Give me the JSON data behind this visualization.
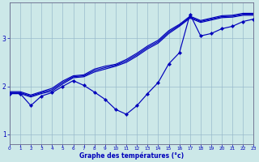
{
  "xlabel": "Graphe des températures (°c)",
  "bg_color": "#cce8e8",
  "line_color": "#0000bb",
  "grid_color": "#99bbcc",
  "xlim": [
    0,
    23
  ],
  "ylim": [
    0.8,
    3.75
  ],
  "yticks": [
    1,
    2,
    3
  ],
  "xticks": [
    0,
    1,
    2,
    3,
    4,
    5,
    6,
    7,
    8,
    9,
    10,
    11,
    12,
    13,
    14,
    15,
    16,
    17,
    18,
    19,
    20,
    21,
    22,
    23
  ],
  "line1": {
    "x": [
      0,
      1,
      2,
      3,
      4,
      5,
      6,
      7,
      8,
      9,
      10,
      11,
      12,
      13,
      14,
      15,
      16,
      17,
      18,
      19,
      20,
      21,
      22,
      23
    ],
    "y": [
      1.85,
      1.85,
      1.78,
      1.85,
      1.9,
      2.05,
      2.18,
      2.2,
      2.3,
      2.36,
      2.42,
      2.5,
      2.63,
      2.78,
      2.9,
      3.1,
      3.25,
      3.42,
      3.33,
      3.38,
      3.43,
      3.44,
      3.48,
      3.48
    ]
  },
  "line2": {
    "x": [
      0,
      1,
      2,
      3,
      4,
      5,
      6,
      7,
      8,
      9,
      10,
      11,
      12,
      13,
      14,
      15,
      16,
      17,
      18,
      19,
      20,
      21,
      22,
      23
    ],
    "y": [
      1.87,
      1.87,
      1.8,
      1.87,
      1.93,
      2.08,
      2.2,
      2.22,
      2.33,
      2.39,
      2.44,
      2.53,
      2.66,
      2.81,
      2.93,
      3.13,
      3.27,
      3.44,
      3.35,
      3.4,
      3.45,
      3.46,
      3.5,
      3.5
    ]
  },
  "line3": {
    "x": [
      0,
      1,
      2,
      3,
      4,
      5,
      6,
      7,
      8,
      9,
      10,
      11,
      12,
      13,
      14,
      15,
      16,
      17,
      18,
      19,
      20,
      21,
      22,
      23
    ],
    "y": [
      1.89,
      1.89,
      1.82,
      1.89,
      1.96,
      2.11,
      2.22,
      2.24,
      2.36,
      2.42,
      2.46,
      2.56,
      2.69,
      2.84,
      2.96,
      3.16,
      3.29,
      3.46,
      3.37,
      3.42,
      3.47,
      3.48,
      3.52,
      3.52
    ]
  },
  "line4": {
    "x": [
      0,
      1,
      2,
      3,
      4,
      5,
      6,
      7,
      8,
      9,
      10,
      11,
      12,
      13,
      14,
      15,
      16,
      17,
      18,
      19,
      20,
      21,
      22,
      23
    ],
    "y": [
      1.85,
      1.85,
      1.6,
      1.8,
      1.87,
      2.0,
      2.12,
      2.02,
      1.88,
      1.73,
      1.52,
      1.42,
      1.6,
      1.85,
      2.08,
      2.47,
      2.7,
      3.5,
      3.05,
      3.1,
      3.2,
      3.25,
      3.35,
      3.4
    ]
  }
}
